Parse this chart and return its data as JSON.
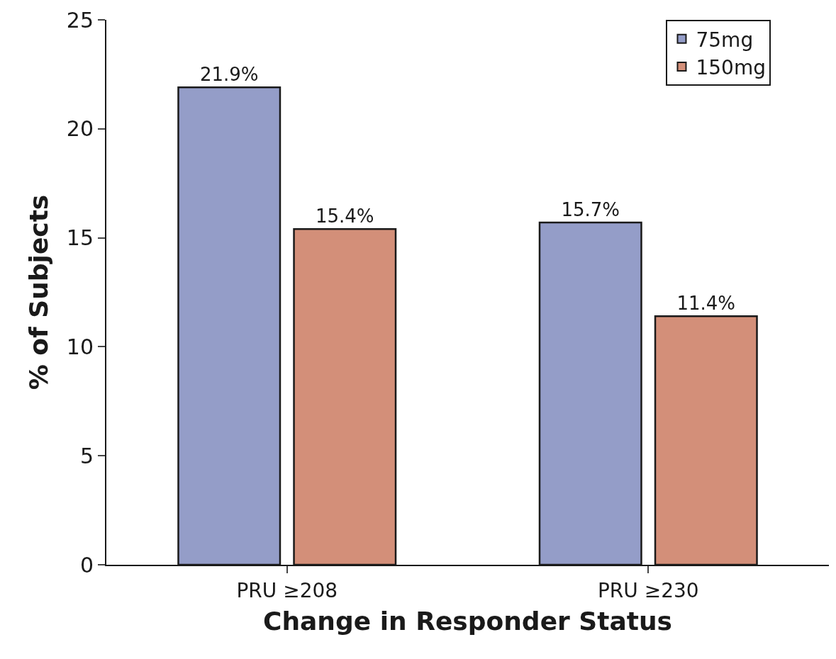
{
  "chart_data": {
    "type": "bar",
    "xlabel": "Change in Responder Status",
    "ylabel": "% of Subjects",
    "categories": [
      "PRU ≥208",
      "PRU ≥230"
    ],
    "series": [
      {
        "name": "75mg",
        "color": "#949dc8",
        "values": [
          21.9,
          15.7
        ],
        "value_labels": [
          "21.9%",
          "15.7%"
        ]
      },
      {
        "name": "150mg",
        "color": "#d38f79",
        "values": [
          15.4,
          11.4
        ],
        "value_labels": [
          "15.4%",
          "11.4%"
        ]
      }
    ],
    "ylim": [
      0,
      25
    ],
    "yticks": [
      0,
      5,
      10,
      15,
      20,
      25
    ],
    "legend": "top right"
  }
}
